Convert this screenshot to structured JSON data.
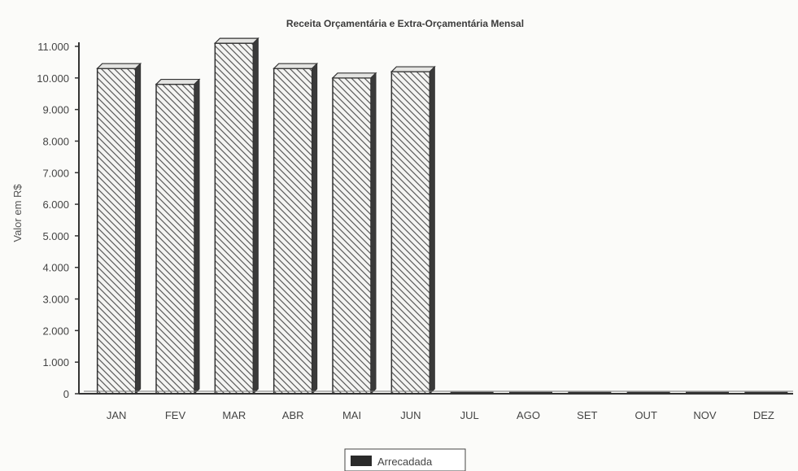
{
  "chart_data": {
    "type": "bar",
    "title": "Receita Orçamentária e Extra-Orçamentária Mensal",
    "xlabel": "",
    "ylabel": "Valor em R$",
    "categories": [
      "JAN",
      "FEV",
      "MAR",
      "ABR",
      "MAI",
      "JUN",
      "JUL",
      "AGO",
      "SET",
      "OUT",
      "NOV",
      "DEZ"
    ],
    "series": [
      {
        "name": "Arrecadada",
        "values": [
          10300,
          9800,
          11100,
          10300,
          10000,
          10200,
          0,
          0,
          0,
          0,
          0,
          0
        ]
      }
    ],
    "ylim": [
      0,
      11000
    ],
    "yticks": [
      "0",
      "1.000",
      "2.000",
      "3.000",
      "4.000",
      "5.000",
      "6.000",
      "7.000",
      "8.000",
      "9.000",
      "10.000",
      "11.000"
    ],
    "ytick_values": [
      0,
      1000,
      2000,
      3000,
      4000,
      5000,
      6000,
      7000,
      8000,
      9000,
      10000,
      11000
    ],
    "grid": false,
    "legend_position": "bottom-center",
    "bar_style": "3d hatched",
    "colors": {
      "bar_fill": "#f2f2f2",
      "bar_hatch": "#555555",
      "bar_edge": "#333333",
      "bar_side": "#3a3a3a",
      "axis": "#333333",
      "legend_swatch": "#2a2a2a"
    }
  }
}
